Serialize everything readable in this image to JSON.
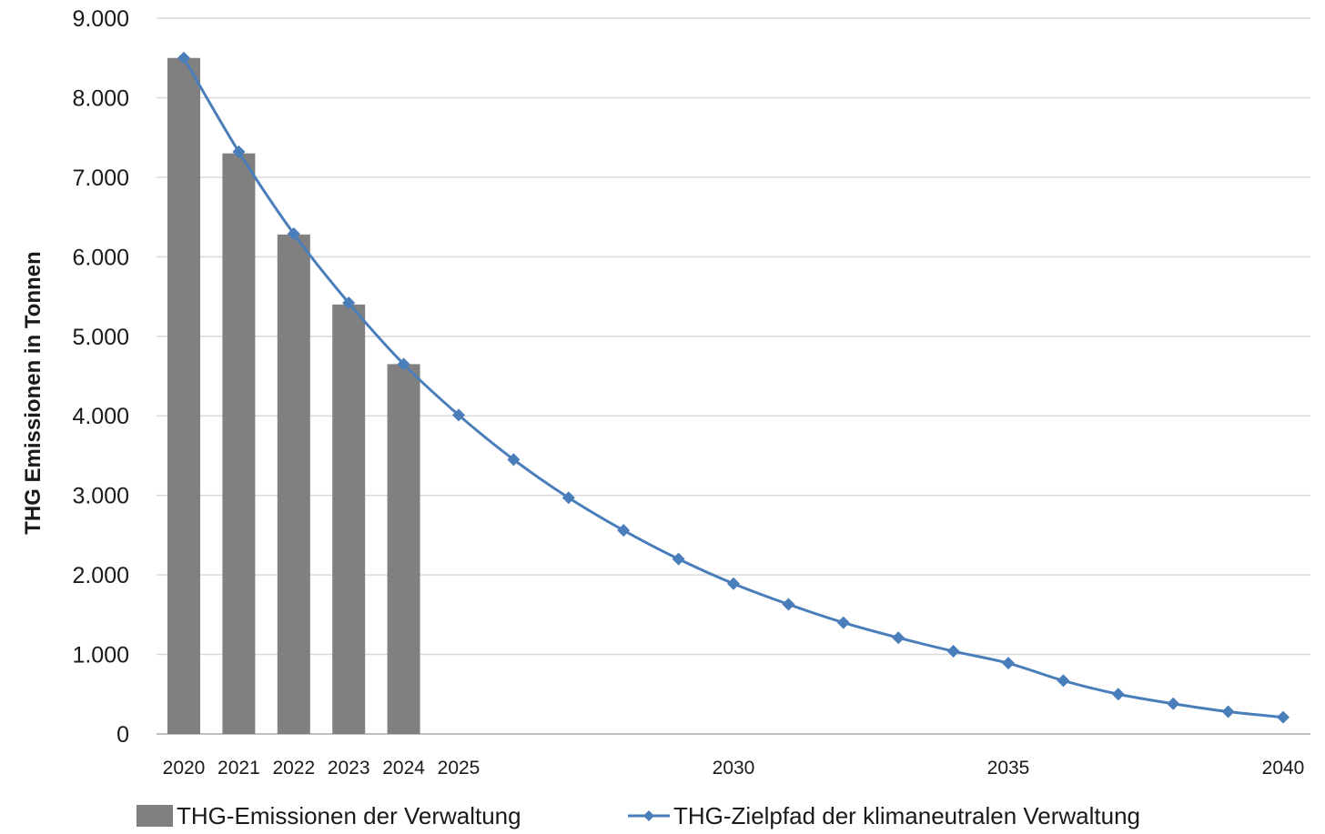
{
  "chart_data": {
    "type": "bar",
    "title": "",
    "xlabel": "",
    "ylabel": "THG Emissionen in Tonnen",
    "ylim": [
      0,
      9000
    ],
    "y_ticks": [
      "0",
      "1.000",
      "2.000",
      "3.000",
      "4.000",
      "5.000",
      "6.000",
      "7.000",
      "8.000",
      "9.000"
    ],
    "y_tick_values": [
      0,
      1000,
      2000,
      3000,
      4000,
      5000,
      6000,
      7000,
      8000,
      9000
    ],
    "x": [
      2020,
      2021,
      2022,
      2023,
      2024,
      2025,
      2026,
      2027,
      2028,
      2029,
      2030,
      2031,
      2032,
      2033,
      2034,
      2035,
      2036,
      2037,
      2038,
      2039,
      2040
    ],
    "x_tick_labels": [
      "2020",
      "2021",
      "2022",
      "2023",
      "2024",
      "2025",
      "2030",
      "2035",
      "2040"
    ],
    "x_tick_values": [
      2020,
      2021,
      2022,
      2023,
      2024,
      2025,
      2030,
      2035,
      2040
    ],
    "grid": true,
    "legend_position": "bottom",
    "series": [
      {
        "name": "THG-Emissionen der Verwaltung",
        "type": "bar",
        "color": "#808080",
        "x": [
          2020,
          2021,
          2022,
          2023,
          2024
        ],
        "values": [
          8500,
          7300,
          6280,
          5400,
          4650
        ]
      },
      {
        "name": "THG-Zielpfad der klimaneutralen Verwaltung",
        "type": "line",
        "marker": "diamond",
        "color": "#4a7ebb",
        "x": [
          2020,
          2021,
          2022,
          2023,
          2024,
          2025,
          2026,
          2027,
          2028,
          2029,
          2030,
          2031,
          2032,
          2033,
          2034,
          2035,
          2036,
          2037,
          2038,
          2039,
          2040
        ],
        "values": [
          8500,
          7320,
          6290,
          5420,
          4650,
          4010,
          3450,
          2970,
          2560,
          2200,
          1890,
          1630,
          1400,
          1210,
          1040,
          890,
          670,
          500,
          380,
          280,
          210
        ]
      }
    ]
  }
}
